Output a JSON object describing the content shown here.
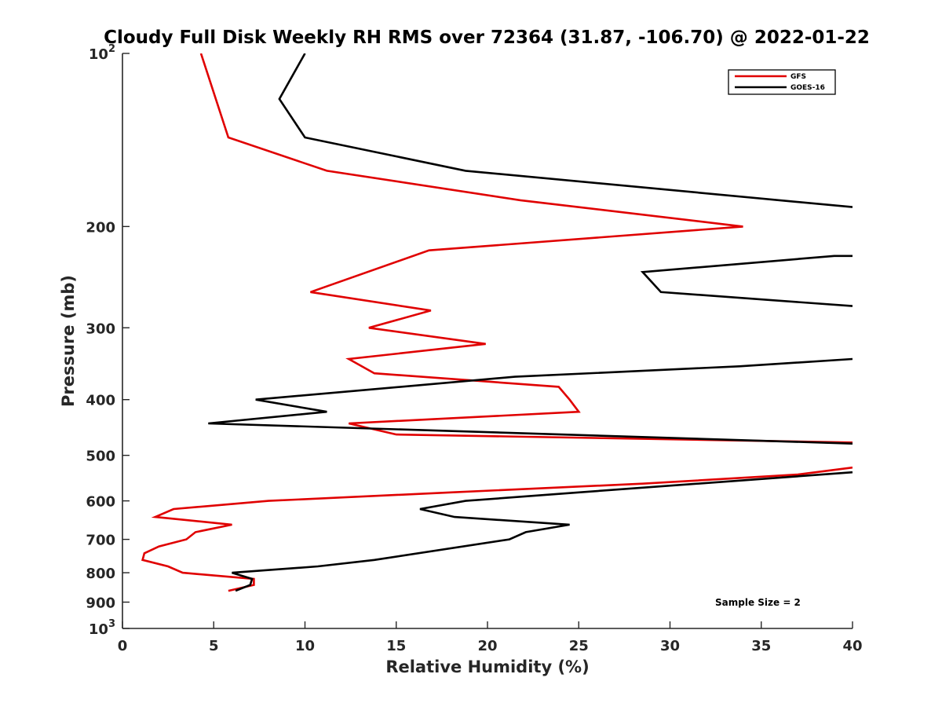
{
  "chart_data": {
    "type": "line",
    "title": "Cloudy Full Disk Weekly RH RMS over 72364 (31.87, -106.70) @ 2022-01-22",
    "xlabel": "Relative Humidity (%)",
    "ylabel": "Pressure (mb)",
    "xlim": [
      0,
      40
    ],
    "ylim": [
      100,
      1000
    ],
    "y_scale": "log",
    "y_reversed": true,
    "grid": false,
    "legend_position": "top-right",
    "x_ticks": [
      0,
      5,
      10,
      15,
      20,
      25,
      30,
      35,
      40
    ],
    "y_ticks": [
      {
        "value": 100,
        "base": "10",
        "exp": "2"
      },
      {
        "value": 200,
        "label": "200"
      },
      {
        "value": 300,
        "label": "300"
      },
      {
        "value": 400,
        "label": "400"
      },
      {
        "value": 500,
        "label": "500"
      },
      {
        "value": 600,
        "label": "600"
      },
      {
        "value": 700,
        "label": "700"
      },
      {
        "value": 800,
        "label": "800"
      },
      {
        "value": 900,
        "label": "900"
      },
      {
        "value": 1000,
        "base": "10",
        "exp": "3"
      }
    ],
    "annotation": "Sample Size = 2",
    "series": [
      {
        "name": "GFS",
        "color": "#e00000",
        "points": [
          [
            4.3,
            100
          ],
          [
            5.8,
            140
          ],
          [
            11.2,
            160
          ],
          [
            21.8,
            180
          ],
          [
            34.0,
            200
          ],
          [
            16.8,
            220
          ],
          [
            10.3,
            260
          ],
          [
            16.9,
            280
          ],
          [
            13.5,
            300
          ],
          [
            19.9,
            320
          ],
          [
            12.4,
            340
          ],
          [
            13.8,
            360
          ],
          [
            23.9,
            380
          ],
          [
            24.5,
            400
          ],
          [
            25.0,
            420
          ],
          [
            12.4,
            440
          ],
          [
            15.0,
            460
          ],
          [
            40.0,
            475
          ]
        ]
      },
      {
        "name": "GFS",
        "color": "#e00000",
        "points": [
          [
            40.0,
            525
          ],
          [
            37.0,
            540
          ],
          [
            28.5,
            560
          ],
          [
            18.0,
            580
          ],
          [
            8.0,
            600
          ],
          [
            2.8,
            620
          ],
          [
            1.8,
            640
          ],
          [
            6.0,
            660
          ],
          [
            4.0,
            680
          ],
          [
            3.5,
            700
          ],
          [
            2.0,
            720
          ],
          [
            1.2,
            740
          ],
          [
            1.1,
            760
          ],
          [
            2.5,
            780
          ],
          [
            3.3,
            800
          ],
          [
            7.2,
            820
          ],
          [
            7.2,
            840
          ],
          [
            5.8,
            860
          ]
        ]
      },
      {
        "name": "GOES-16",
        "color": "#000000",
        "points": [
          [
            10.0,
            100
          ],
          [
            8.6,
            120
          ],
          [
            10.0,
            140
          ],
          [
            18.8,
            160
          ],
          [
            36.0,
            180
          ],
          [
            40.0,
            185
          ]
        ]
      },
      {
        "name": "GOES-16",
        "color": "#000000",
        "points": [
          [
            40.0,
            225
          ],
          [
            39.0,
            225
          ],
          [
            28.5,
            240
          ],
          [
            29.5,
            260
          ],
          [
            40.0,
            275
          ]
        ]
      },
      {
        "name": "GOES-16",
        "color": "#000000",
        "points": [
          [
            40.0,
            340
          ],
          [
            33.8,
            350
          ],
          [
            21.5,
            365
          ],
          [
            7.3,
            400
          ],
          [
            11.2,
            420
          ],
          [
            4.7,
            440
          ],
          [
            40.0,
            477
          ]
        ]
      },
      {
        "name": "GOES-16",
        "color": "#000000",
        "points": [
          [
            40.0,
            535
          ],
          [
            25.0,
            580
          ],
          [
            18.8,
            600
          ],
          [
            16.3,
            620
          ],
          [
            18.2,
            640
          ],
          [
            24.5,
            660
          ],
          [
            22.1,
            680
          ],
          [
            21.2,
            700
          ],
          [
            13.8,
            760
          ],
          [
            10.7,
            780
          ],
          [
            6.0,
            800
          ],
          [
            7.1,
            820
          ],
          [
            7.0,
            840
          ],
          [
            6.2,
            860
          ]
        ]
      }
    ],
    "legend": [
      {
        "label": "GFS",
        "color": "#e00000"
      },
      {
        "label": "GOES-16",
        "color": "#000000"
      }
    ]
  }
}
